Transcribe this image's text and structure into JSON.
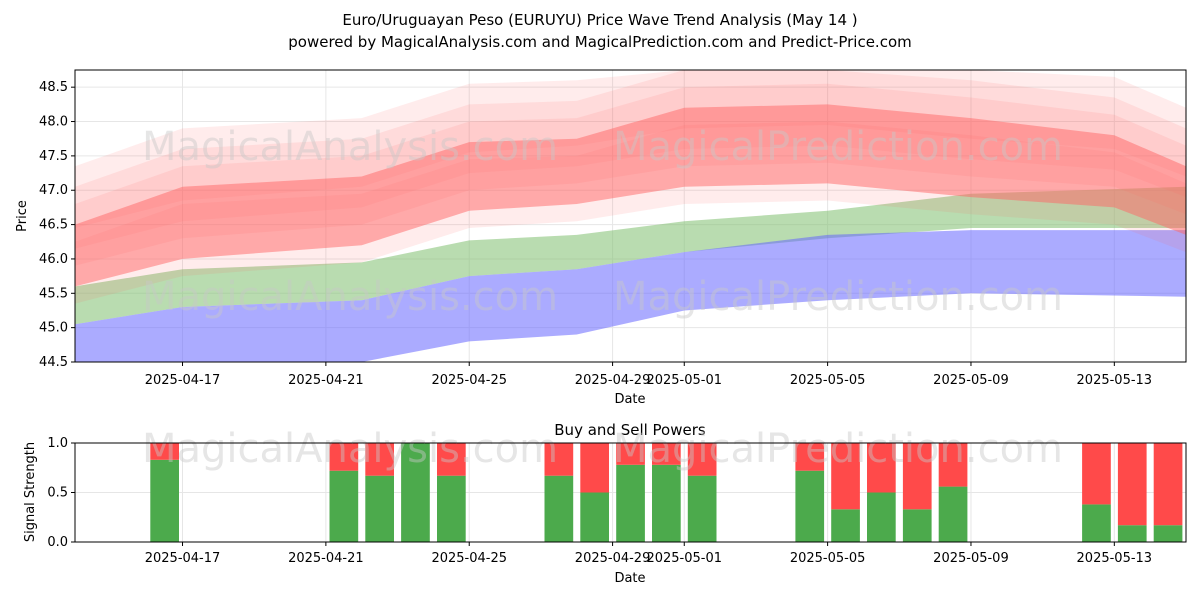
{
  "title": "Euro/Uruguayan Peso (EURUYU) Price Wave Trend Analysis (May 14 )",
  "subtitle": "powered by MagicalAnalysis.com and MagicalPrediction.com and Predict-Price.com",
  "watermarks": [
    "MagicalAnalysis.com",
    "MagicalPrediction.com"
  ],
  "colors": {
    "red_band": "#ff6666",
    "green_band": "#7fbf6f",
    "blue_band": "#6666ff",
    "buy": "#4caa4c",
    "sell": "#ff4a4a"
  },
  "chart_data": [
    {
      "type": "area",
      "title": "",
      "xlabel": "Date",
      "ylabel": "Price",
      "x_start": "2025-04-14",
      "x_end": "2025-05-15",
      "xlim": [
        "2025-04-14",
        "2025-05-15"
      ],
      "ylim": [
        44.5,
        48.75
      ],
      "x_ticks": [
        "2025-04-17",
        "2025-04-21",
        "2025-04-25",
        "2025-04-29",
        "2025-05-01",
        "2025-05-05",
        "2025-05-09",
        "2025-05-13"
      ],
      "y_ticks": [
        "44.5",
        "45.0",
        "45.5",
        "46.0",
        "46.5",
        "47.0",
        "47.5",
        "48.0",
        "48.5"
      ],
      "grid": true,
      "series": [
        {
          "color": "green",
          "x": [
            "2025-04-14",
            "2025-04-17",
            "2025-04-22",
            "2025-04-25",
            "2025-04-28",
            "2025-05-01",
            "2025-05-05",
            "2025-05-09",
            "2025-05-15"
          ],
          "upper": [
            45.6,
            45.85,
            45.95,
            46.27,
            46.35,
            46.55,
            46.7,
            46.95,
            47.05
          ],
          "lower": [
            45.05,
            45.3,
            45.4,
            45.75,
            45.85,
            46.1,
            46.3,
            46.45,
            46.45
          ]
        },
        {
          "color": "blue",
          "x": [
            "2025-04-14",
            "2025-04-17",
            "2025-04-22",
            "2025-04-25",
            "2025-04-28",
            "2025-05-01",
            "2025-05-05",
            "2025-05-09",
            "2025-05-15"
          ],
          "upper": [
            45.05,
            45.3,
            45.4,
            45.75,
            45.85,
            46.1,
            46.35,
            46.42,
            46.42
          ],
          "lower": [
            44.5,
            44.5,
            44.5,
            44.8,
            44.9,
            45.25,
            45.4,
            45.5,
            45.45
          ]
        },
        {
          "color": "red",
          "x": [
            "2025-04-14",
            "2025-04-17",
            "2025-04-22",
            "2025-04-25",
            "2025-04-28",
            "2025-05-01",
            "2025-05-05",
            "2025-05-09",
            "2025-05-13",
            "2025-05-15"
          ],
          "upper": [
            46.5,
            47.05,
            47.2,
            47.7,
            47.75,
            48.2,
            48.25,
            48.05,
            47.8,
            47.35
          ],
          "lower": [
            45.6,
            46.0,
            46.2,
            46.7,
            46.8,
            47.05,
            47.1,
            46.9,
            46.75,
            46.35
          ]
        }
      ]
    },
    {
      "type": "bar",
      "title": "Buy and Sell Powers",
      "xlabel": "Date",
      "ylabel": "Signal Strength",
      "xlim": [
        "2025-04-14",
        "2025-05-15"
      ],
      "ylim": [
        0,
        1.0
      ],
      "x_ticks": [
        "2025-04-17",
        "2025-04-21",
        "2025-04-25",
        "2025-04-29",
        "2025-05-01",
        "2025-05-05",
        "2025-05-09",
        "2025-05-13"
      ],
      "y_ticks": [
        "0.0",
        "0.5",
        "1.0"
      ],
      "grid": true,
      "categories": [
        "2025-04-16",
        "2025-04-21",
        "2025-04-22",
        "2025-04-23",
        "2025-04-24",
        "2025-04-27",
        "2025-04-28",
        "2025-04-29",
        "2025-04-30",
        "2025-05-01",
        "2025-05-04",
        "2025-05-05",
        "2025-05-06",
        "2025-05-07",
        "2025-05-08",
        "2025-05-12",
        "2025-05-13",
        "2025-05-14"
      ],
      "series": [
        {
          "name": "Buy",
          "values": [
            0.83,
            0.72,
            0.67,
            1.0,
            0.67,
            0.67,
            0.5,
            0.78,
            0.78,
            0.67,
            0.72,
            0.33,
            0.5,
            0.33,
            0.56,
            0.38,
            0.17,
            0.17
          ]
        },
        {
          "name": "Sell",
          "values": [
            0.17,
            0.28,
            0.33,
            0.0,
            0.33,
            0.33,
            0.5,
            0.22,
            0.22,
            0.33,
            0.28,
            0.67,
            0.5,
            0.67,
            0.44,
            0.62,
            0.83,
            0.83
          ]
        }
      ]
    }
  ]
}
